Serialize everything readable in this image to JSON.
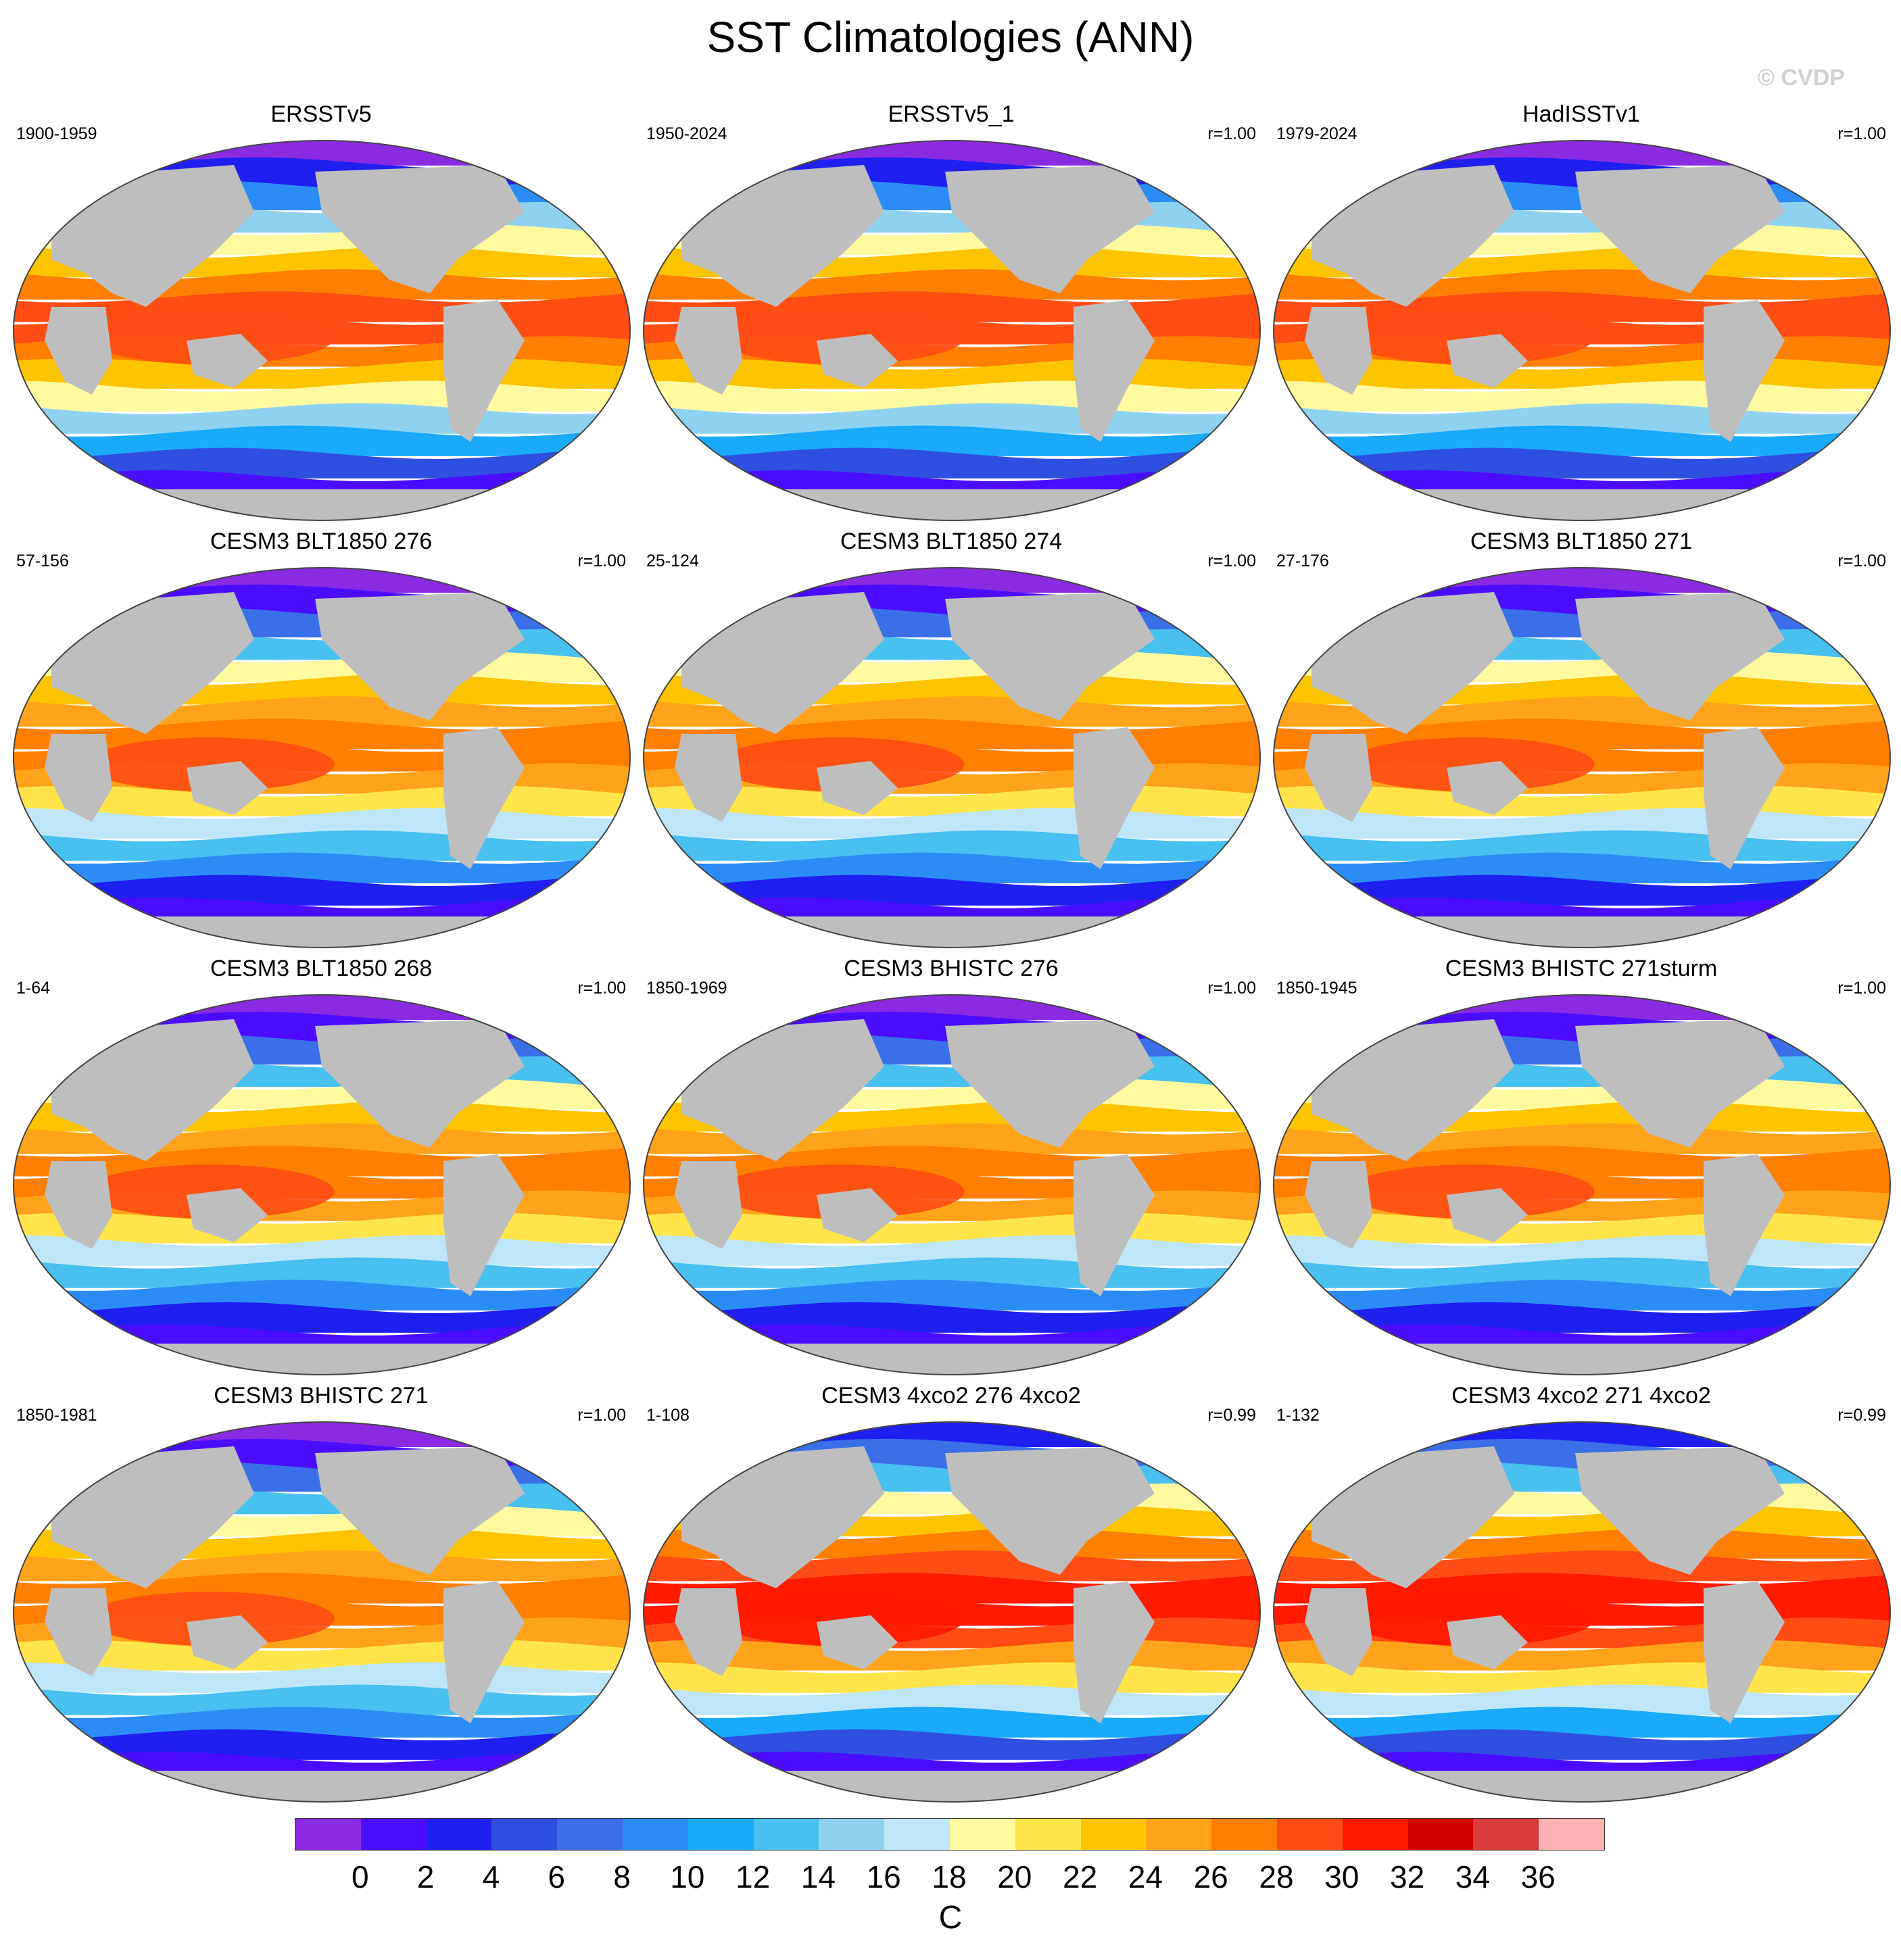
{
  "title": "SST Climatologies (ANN)",
  "watermark": "© CVDP",
  "colors": {
    "land": "#bebebe",
    "levels": [
      "#8a2be2",
      "#4b0dff",
      "#1f1fef",
      "#2f4fe0",
      "#3a6fe8",
      "#2b8cf5",
      "#19aafa",
      "#48c0f0",
      "#8fd2f0",
      "#bfe6f8",
      "#fffaa0",
      "#ffe54a",
      "#ffc400",
      "#ffa41a",
      "#ff7f00",
      "#ff4d14",
      "#ff1a00",
      "#d10000",
      "#d93a3a",
      "#ffb2b2"
    ]
  },
  "panels": [
    {
      "title": "ERSSTv5",
      "range": "1900-1959",
      "corr": "",
      "variant": "obs"
    },
    {
      "title": "ERSSTv5_1",
      "range": "1950-2024",
      "corr": "r=1.00",
      "variant": "obs"
    },
    {
      "title": "HadISSTv1",
      "range": "1979-2024",
      "corr": "r=1.00",
      "variant": "obs"
    },
    {
      "title": "CESM3 BLT1850 276",
      "range": "57-156",
      "corr": "r=1.00",
      "variant": "model"
    },
    {
      "title": "CESM3 BLT1850 274",
      "range": "25-124",
      "corr": "r=1.00",
      "variant": "model"
    },
    {
      "title": "CESM3 BLT1850 271",
      "range": "27-176",
      "corr": "r=1.00",
      "variant": "model"
    },
    {
      "title": "CESM3 BLT1850 268",
      "range": "1-64",
      "corr": "r=1.00",
      "variant": "model"
    },
    {
      "title": "CESM3 BHISTC 276",
      "range": "1850-1969",
      "corr": "r=1.00",
      "variant": "model"
    },
    {
      "title": "CESM3 BHISTC 271sturm",
      "range": "1850-1945",
      "corr": "r=1.00",
      "variant": "model"
    },
    {
      "title": "CESM3 BHISTC 271",
      "range": "1850-1981",
      "corr": "r=1.00",
      "variant": "model"
    },
    {
      "title": "CESM3 4xco2 276 4xco2",
      "range": "1-108",
      "corr": "r=0.99",
      "variant": "warm"
    },
    {
      "title": "CESM3 4xco2 271 4xco2",
      "range": "1-132",
      "corr": "r=0.99",
      "variant": "warm"
    }
  ],
  "colorbar": {
    "ticks": [
      "0",
      "2",
      "4",
      "6",
      "8",
      "10",
      "12",
      "14",
      "16",
      "18",
      "20",
      "22",
      "24",
      "26",
      "28",
      "30",
      "32",
      "34",
      "36"
    ],
    "units": "C"
  }
}
